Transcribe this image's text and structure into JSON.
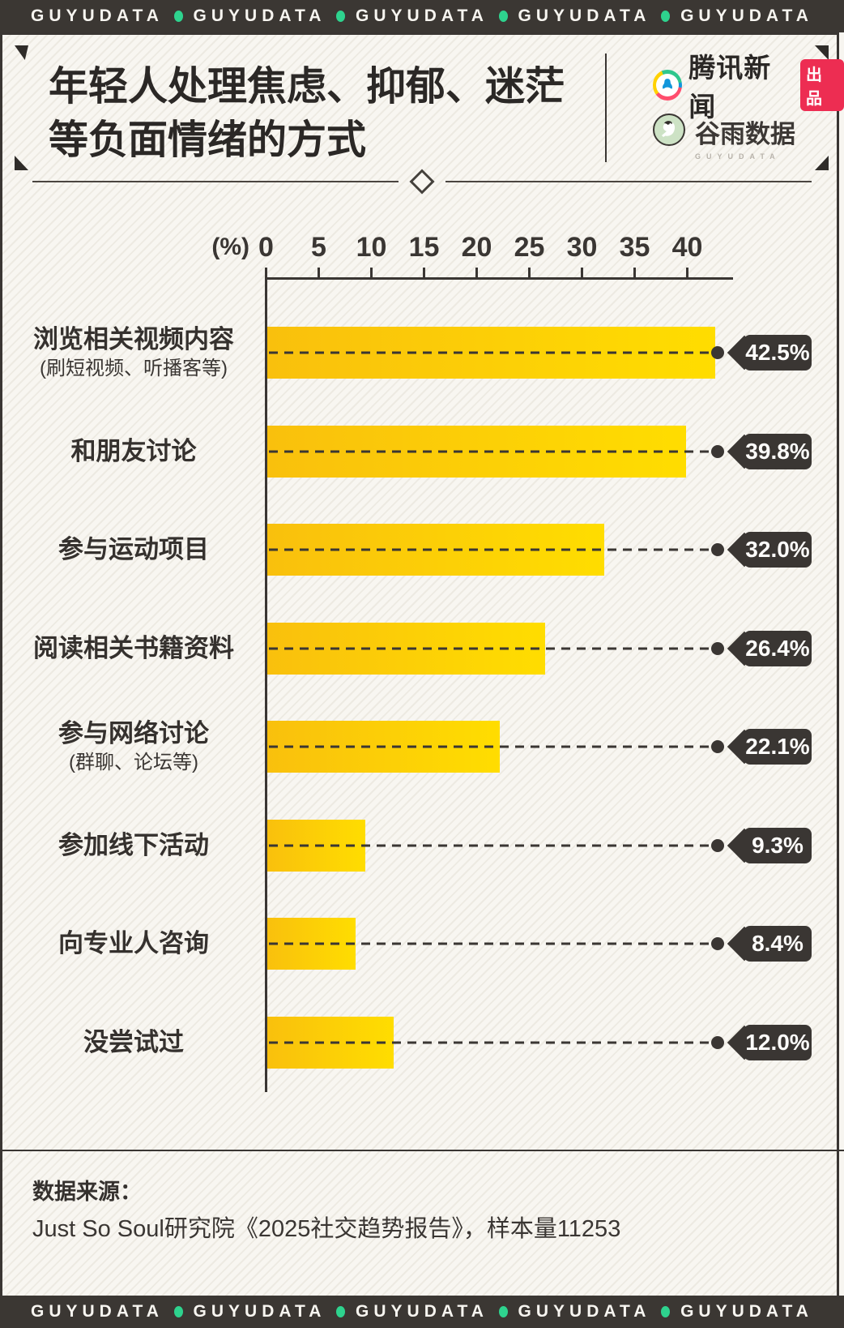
{
  "banner": {
    "brand": "GUYUDATA",
    "repeat": 5,
    "dot_color": "#2ed38e",
    "bg_color": "#3b3733"
  },
  "header": {
    "title_line1": "年轻人处理焦虑、抑郁、迷茫",
    "title_line2": "等负面情绪的方式",
    "tencent_logo_text": "腾讯新闻",
    "tencent_badge": "出品",
    "guyu_logo_text": "谷雨数据",
    "guyu_logo_sub": "GUYUDATA"
  },
  "chart_data": {
    "type": "bar",
    "orientation": "horizontal",
    "title": "年轻人处理焦虑、抑郁、迷茫等负面情绪的方式",
    "xlabel": "(%)",
    "xlim": [
      0,
      40
    ],
    "axis_ticks": [
      0,
      5,
      10,
      15,
      20,
      25,
      30,
      35,
      40
    ],
    "bar_color_start": "#f9c00d",
    "bar_color_end": "#ffdd00",
    "tag_color": "#3a3633",
    "rows": [
      {
        "label": "浏览相关视频内容",
        "sublabel": "(刷短视频、听播客等)",
        "value": 42.5,
        "display": "42.5%"
      },
      {
        "label": "和朋友讨论",
        "sublabel": "",
        "value": 39.8,
        "display": "39.8%"
      },
      {
        "label": "参与运动项目",
        "sublabel": "",
        "value": 32.0,
        "display": "32.0%"
      },
      {
        "label": "阅读相关书籍资料",
        "sublabel": "",
        "value": 26.4,
        "display": "26.4%"
      },
      {
        "label": "参与网络讨论",
        "sublabel": "(群聊、论坛等)",
        "value": 22.1,
        "display": "22.1%"
      },
      {
        "label": "参加线下活动",
        "sublabel": "",
        "value": 9.3,
        "display": "9.3%"
      },
      {
        "label": "向专业人咨询",
        "sublabel": "",
        "value": 8.4,
        "display": "8.4%"
      },
      {
        "label": "没尝试过",
        "sublabel": "",
        "value": 12.0,
        "display": "12.0%"
      }
    ]
  },
  "footer": {
    "source_label": "数据来源：",
    "source_text": "Just So Soul研究院《2025社交趋势报告》，样本量11253"
  }
}
